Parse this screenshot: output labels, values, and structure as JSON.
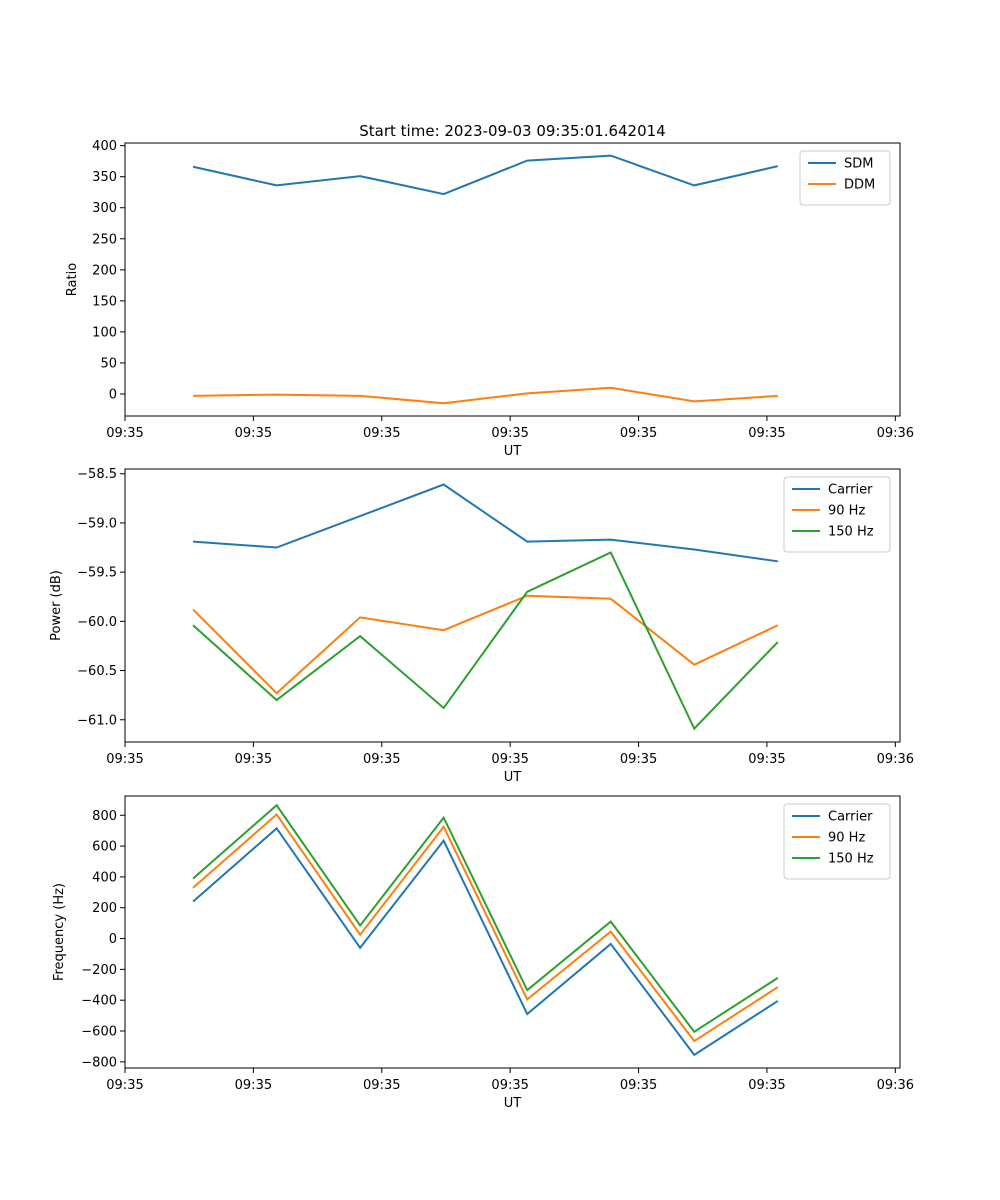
{
  "figure_title": "Start time: 2023-09-03 09:35:01.642014",
  "chart_data": [
    {
      "type": "line",
      "title": "Start time: 2023-09-03 09:35:01.642014",
      "xlabel": "UT",
      "ylabel": "Ratio",
      "x_tick_labels": [
        "09:35",
        "09:35",
        "09:35",
        "09:35",
        "09:35",
        "09:35",
        "09:36"
      ],
      "x": [
        1,
        2,
        3,
        4,
        5,
        6,
        7,
        8
      ],
      "xlim": [
        0.185,
        9.463
      ],
      "x_tick_positions": [
        0.185,
        1.722,
        3.259,
        4.796,
        6.333,
        7.87,
        9.407
      ],
      "ylim": [
        -35.5,
        404.3
      ],
      "y_ticks": [
        0,
        50,
        100,
        150,
        200,
        250,
        300,
        350,
        400
      ],
      "y_tick_labels": [
        "0",
        "50",
        "100",
        "150",
        "200",
        "250",
        "300",
        "350",
        "400"
      ],
      "legend_position": "top-right",
      "series": [
        {
          "name": "SDM",
          "color": "#1f77b4",
          "values": [
            366,
            336,
            351,
            322,
            376,
            384,
            336,
            367
          ]
        },
        {
          "name": "DDM",
          "color": "#ff7f0e",
          "values": [
            -3,
            -1,
            -3,
            -15,
            1,
            10,
            -12,
            -3
          ]
        }
      ]
    },
    {
      "type": "line",
      "xlabel": "UT",
      "ylabel": "Power (dB)",
      "x_tick_labels": [
        "09:35",
        "09:35",
        "09:35",
        "09:35",
        "09:35",
        "09:35",
        "09:36"
      ],
      "x": [
        1,
        2,
        3,
        4,
        5,
        6,
        7,
        8
      ],
      "xlim": [
        0.185,
        9.463
      ],
      "x_tick_positions": [
        0.185,
        1.722,
        3.259,
        4.796,
        6.333,
        7.87,
        9.407
      ],
      "ylim": [
        -61.226,
        -58.452
      ],
      "y_ticks": [
        -61.0,
        -60.5,
        -60.0,
        -59.5,
        -59.0,
        -58.5
      ],
      "y_tick_labels": [
        "−61.0",
        "−60.5",
        "−60.0",
        "−59.5",
        "−59.0",
        "−58.5"
      ],
      "legend_position": "top-right",
      "series": [
        {
          "name": "Carrier",
          "color": "#1f77b4",
          "values": [
            -59.19,
            -59.25,
            -58.93,
            -58.61,
            -59.19,
            -59.17,
            -59.27,
            -59.39
          ]
        },
        {
          "name": "90 Hz",
          "color": "#ff7f0e",
          "values": [
            -59.88,
            -60.73,
            -59.96,
            -60.09,
            -59.74,
            -59.77,
            -60.44,
            -60.04
          ]
        },
        {
          "name": "150 Hz",
          "color": "#2ca02c",
          "values": [
            -60.04,
            -60.8,
            -60.15,
            -60.88,
            -59.7,
            -59.3,
            -61.09,
            -60.21
          ]
        }
      ]
    },
    {
      "type": "line",
      "xlabel": "UT",
      "ylabel": "Frequency (Hz)",
      "x_tick_labels": [
        "09:35",
        "09:35",
        "09:35",
        "09:35",
        "09:35",
        "09:35",
        "09:36"
      ],
      "x": [
        1,
        2,
        3,
        4,
        5,
        6,
        7,
        8
      ],
      "xlim": [
        0.185,
        9.463
      ],
      "x_tick_positions": [
        0.185,
        1.722,
        3.259,
        4.796,
        6.333,
        7.87,
        9.407
      ],
      "ylim": [
        -840,
        925
      ],
      "y_ticks": [
        -800,
        -600,
        -400,
        -200,
        0,
        200,
        400,
        600,
        800
      ],
      "y_tick_labels": [
        "−800",
        "−600",
        "−400",
        "−200",
        "0",
        "200",
        "400",
        "600",
        "800"
      ],
      "legend_position": "top-right",
      "series": [
        {
          "name": "Carrier",
          "color": "#1f77b4",
          "values": [
            240,
            715,
            -60,
            635,
            -490,
            -35,
            -755,
            -405
          ]
        },
        {
          "name": "90 Hz",
          "color": "#ff7f0e",
          "values": [
            330,
            805,
            25,
            725,
            -395,
            45,
            -665,
            -315
          ]
        },
        {
          "name": "150 Hz",
          "color": "#2ca02c",
          "values": [
            390,
            865,
            85,
            785,
            -335,
            110,
            -605,
            -255
          ]
        }
      ]
    }
  ]
}
